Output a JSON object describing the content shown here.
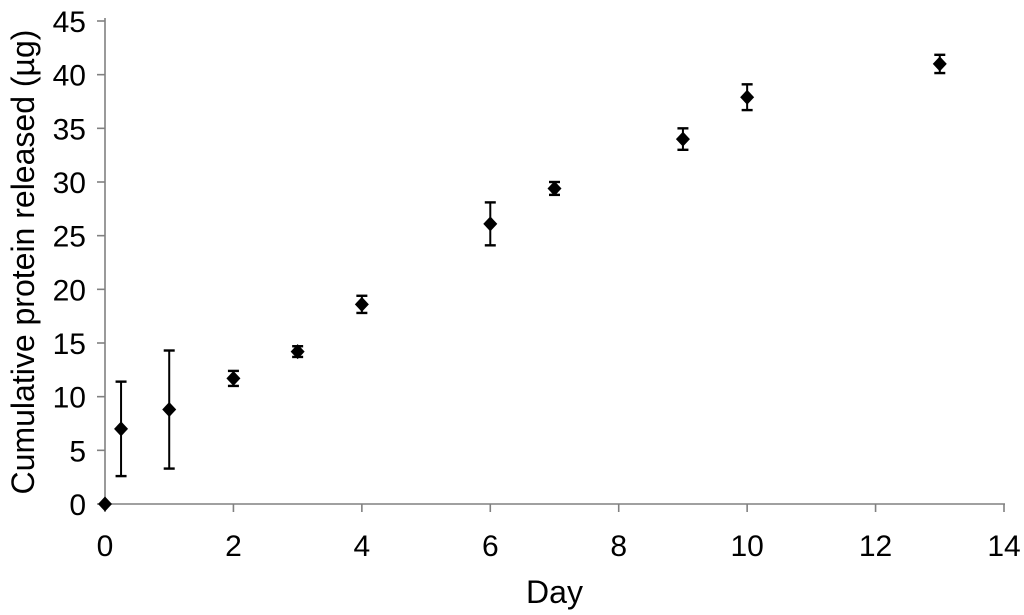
{
  "chart_data": {
    "type": "scatter",
    "title": "",
    "xlabel": "Day",
    "ylabel": "Cumulative protein released (µg)",
    "xlim": [
      0,
      14
    ],
    "ylim": [
      0,
      45
    ],
    "xticks": [
      0,
      2,
      4,
      6,
      8,
      10,
      12,
      14
    ],
    "yticks": [
      0,
      5,
      10,
      15,
      20,
      25,
      30,
      35,
      40,
      45
    ],
    "grid": false,
    "legend": null,
    "marker": "diamond",
    "marker_color": "#000000",
    "error_bar_color": "#000000",
    "axis_color": "#808080",
    "tick_label_color": "#000000",
    "points": [
      {
        "x": 0,
        "y": 0,
        "err": 0
      },
      {
        "x": 0.25,
        "y": 7.0,
        "err": 4.4
      },
      {
        "x": 1,
        "y": 8.8,
        "err": 5.5
      },
      {
        "x": 2,
        "y": 11.7,
        "err": 0.7
      },
      {
        "x": 3,
        "y": 14.2,
        "err": 0.5
      },
      {
        "x": 4,
        "y": 18.6,
        "err": 0.8
      },
      {
        "x": 6,
        "y": 26.1,
        "err": 2.0
      },
      {
        "x": 7,
        "y": 29.4,
        "err": 0.6
      },
      {
        "x": 9,
        "y": 34.0,
        "err": 1.0
      },
      {
        "x": 10,
        "y": 37.9,
        "err": 1.2
      },
      {
        "x": 13,
        "y": 41.0,
        "err": 0.85
      }
    ]
  }
}
